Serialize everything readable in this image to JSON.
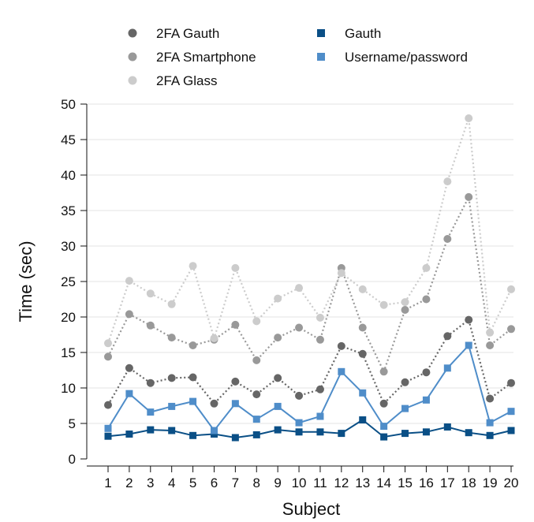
{
  "chart_data": {
    "type": "line",
    "xlabel": "Subject",
    "ylabel": "Time (sec)",
    "x": [
      1,
      2,
      3,
      4,
      5,
      6,
      7,
      8,
      9,
      10,
      11,
      12,
      13,
      14,
      15,
      16,
      17,
      18,
      19,
      20
    ],
    "ylim": [
      0,
      50
    ],
    "yticks": [
      0,
      5,
      10,
      15,
      20,
      25,
      30,
      35,
      40,
      45,
      50
    ],
    "grid": "horizontal",
    "legend_position": "top",
    "series": [
      {
        "name": "2FA Gauth",
        "marker": "circle",
        "line": "dotted",
        "color": "#666666",
        "values": [
          7.6,
          12.8,
          10.7,
          11.4,
          11.5,
          7.8,
          10.9,
          9.1,
          11.4,
          8.9,
          9.8,
          15.9,
          14.8,
          7.8,
          10.8,
          12.2,
          17.3,
          19.6,
          8.5,
          10.7
        ]
      },
      {
        "name": "2FA Smartphone",
        "marker": "circle",
        "line": "dotted",
        "color": "#999999",
        "values": [
          14.4,
          20.4,
          18.8,
          17.1,
          16.0,
          16.8,
          18.9,
          13.9,
          17.1,
          18.5,
          16.8,
          26.9,
          18.5,
          12.3,
          21.0,
          22.5,
          31.0,
          36.9,
          16.0,
          18.3
        ]
      },
      {
        "name": "2FA Glass",
        "marker": "circle",
        "line": "dotted",
        "color": "#cccccc",
        "values": [
          16.3,
          25.1,
          23.3,
          21.8,
          27.2,
          17.0,
          26.9,
          19.4,
          22.6,
          24.1,
          19.9,
          26.2,
          23.9,
          21.7,
          22.1,
          26.9,
          39.1,
          48.0,
          17.8,
          23.9
        ]
      },
      {
        "name": "Gauth",
        "marker": "square",
        "line": "solid",
        "color": "#0a4f86",
        "values": [
          3.2,
          3.5,
          4.1,
          4.0,
          3.3,
          3.5,
          3.0,
          3.4,
          4.1,
          3.8,
          3.8,
          3.6,
          5.5,
          3.1,
          3.6,
          3.8,
          4.5,
          3.7,
          3.3,
          4.0
        ]
      },
      {
        "name": "Username/password",
        "marker": "square",
        "line": "solid",
        "color": "#4f8dc9",
        "values": [
          4.3,
          9.2,
          6.6,
          7.4,
          8.1,
          4.0,
          7.8,
          5.6,
          7.4,
          5.1,
          6.0,
          12.3,
          9.3,
          4.6,
          7.1,
          8.3,
          12.8,
          16.0,
          5.1,
          6.7
        ]
      }
    ]
  }
}
